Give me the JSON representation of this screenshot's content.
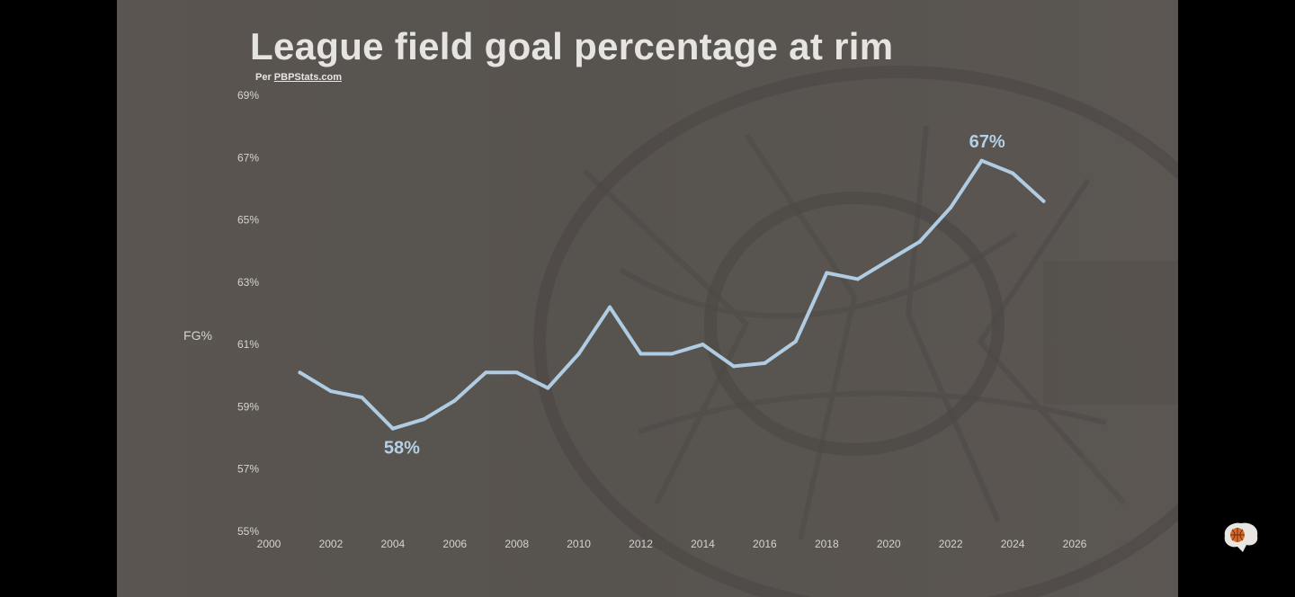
{
  "colors": {
    "line": "#b0cce3",
    "annotation": "#b4d0e6",
    "axis_text": "#d6d3cf",
    "slide_bg": "#58534f",
    "frame_bg": "#000000"
  },
  "slide": {
    "source_prefix": "Per ",
    "source_link": "PBPStats.com",
    "background_image_icon": "basketball-hoop-net-photo"
  },
  "watermark": {
    "icon": "basketball-brain-icon"
  },
  "chart_data": {
    "type": "line",
    "title": "League field goal percentage at rim",
    "ylabel": "FG%",
    "xlabel": "",
    "xlim": [
      2000,
      2026
    ],
    "ylim": [
      55,
      69
    ],
    "x_ticks": [
      "2000",
      "2002",
      "2004",
      "2006",
      "2008",
      "2010",
      "2012",
      "2014",
      "2016",
      "2018",
      "2020",
      "2022",
      "2024",
      "2026"
    ],
    "y_ticks": [
      "55%",
      "57%",
      "59%",
      "61%",
      "63%",
      "65%",
      "67%",
      "69%"
    ],
    "grid": false,
    "legend": "none",
    "series": [
      {
        "x": [
          2001,
          2002,
          2003,
          2004,
          2005,
          2006,
          2007,
          2008,
          2009,
          2010,
          2011,
          2012,
          2013,
          2014,
          2015,
          2016,
          2017,
          2018,
          2019,
          2020,
          2021,
          2022,
          2023,
          2024,
          2025
        ],
        "values": [
          60.1,
          59.5,
          59.3,
          58.3,
          58.6,
          59.2,
          60.1,
          60.1,
          59.6,
          60.7,
          62.2,
          60.7,
          60.7,
          61.0,
          60.3,
          60.4,
          61.1,
          63.3,
          63.1,
          63.7,
          64.3,
          65.4,
          66.9,
          66.5,
          65.6
        ]
      }
    ],
    "annotations": [
      {
        "text": "58%",
        "x": 2004,
        "y": 58.3,
        "position": "below"
      },
      {
        "text": "67%",
        "x": 2023,
        "y": 66.9,
        "position": "above"
      }
    ]
  }
}
